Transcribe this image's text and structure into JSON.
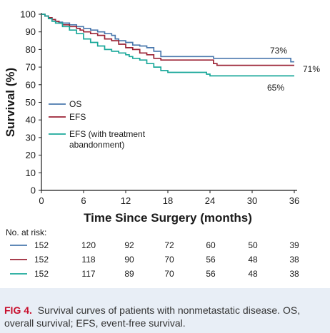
{
  "chart_data": {
    "type": "line",
    "step": true,
    "xlabel": "Time Since Surgery (months)",
    "ylabel": "Survival (%)",
    "xlim": [
      0,
      36
    ],
    "ylim": [
      0,
      100
    ],
    "x_ticks": [
      0,
      6,
      12,
      18,
      24,
      30,
      36
    ],
    "y_ticks": [
      0,
      10,
      20,
      30,
      40,
      50,
      60,
      70,
      80,
      90,
      100
    ],
    "legend_position": "left",
    "series": [
      {
        "name": "OS",
        "color": "#4a78ad",
        "end_label": "73%",
        "points": [
          [
            0,
            100
          ],
          [
            0.5,
            99
          ],
          [
            1,
            98
          ],
          [
            1.5,
            97
          ],
          [
            2,
            96
          ],
          [
            2.5,
            95.5
          ],
          [
            3,
            95
          ],
          [
            4,
            94
          ],
          [
            5,
            93
          ],
          [
            6,
            92
          ],
          [
            7,
            91
          ],
          [
            8,
            90
          ],
          [
            9,
            89
          ],
          [
            10,
            88
          ],
          [
            10.5,
            86
          ],
          [
            11,
            85
          ],
          [
            12,
            84
          ],
          [
            13,
            82.5
          ],
          [
            14,
            82
          ],
          [
            15,
            81
          ],
          [
            16,
            79
          ],
          [
            17,
            76
          ],
          [
            24,
            76
          ],
          [
            24.5,
            75
          ],
          [
            35,
            75
          ],
          [
            35.5,
            73
          ],
          [
            36,
            73
          ]
        ]
      },
      {
        "name": "EFS",
        "color": "#9b2335",
        "end_label": "71%",
        "points": [
          [
            0,
            100
          ],
          [
            0.5,
            99
          ],
          [
            1,
            98
          ],
          [
            1.5,
            97
          ],
          [
            2,
            96
          ],
          [
            2.5,
            95
          ],
          [
            3,
            94
          ],
          [
            4,
            93
          ],
          [
            5,
            92
          ],
          [
            5.5,
            91
          ],
          [
            6,
            90
          ],
          [
            7,
            89
          ],
          [
            8,
            88
          ],
          [
            9,
            86
          ],
          [
            10,
            85
          ],
          [
            11,
            83
          ],
          [
            12,
            81
          ],
          [
            13,
            80
          ],
          [
            14,
            78
          ],
          [
            15,
            77
          ],
          [
            16,
            75
          ],
          [
            17,
            74
          ],
          [
            24,
            74
          ],
          [
            24.5,
            72
          ],
          [
            25,
            71
          ],
          [
            36,
            71
          ]
        ]
      },
      {
        "name": "EFS (with treatment abandonment)",
        "color": "#1aa89a",
        "end_label": "65%",
        "points": [
          [
            0,
            100
          ],
          [
            0.5,
            99
          ],
          [
            1,
            97.5
          ],
          [
            1.5,
            96
          ],
          [
            2,
            95
          ],
          [
            3,
            93
          ],
          [
            4,
            91
          ],
          [
            5,
            89
          ],
          [
            6,
            86
          ],
          [
            7,
            84
          ],
          [
            8,
            82
          ],
          [
            9,
            80
          ],
          [
            10,
            79
          ],
          [
            11,
            78
          ],
          [
            12,
            77
          ],
          [
            12.5,
            76
          ],
          [
            13,
            75
          ],
          [
            14,
            74
          ],
          [
            15,
            72
          ],
          [
            16,
            70
          ],
          [
            17,
            68
          ],
          [
            18,
            67
          ],
          [
            23,
            67
          ],
          [
            23.5,
            66
          ],
          [
            24,
            65
          ],
          [
            36,
            65
          ]
        ]
      }
    ],
    "risk_table": {
      "title": "No. at risk:",
      "rows": [
        {
          "name": "OS",
          "color": "#4a78ad",
          "values": [
            152,
            120,
            92,
            72,
            60,
            50,
            39
          ]
        },
        {
          "name": "EFS",
          "color": "#9b2335",
          "values": [
            152,
            118,
            90,
            70,
            56,
            48,
            38
          ]
        },
        {
          "name": "EFS (with treatment abandonment)",
          "color": "#1aa89a",
          "values": [
            152,
            117,
            89,
            70,
            56,
            48,
            38
          ]
        }
      ]
    }
  },
  "caption": {
    "label": "FIG 4.",
    "text": "Survival curves of patients with nonmetastatic disease. OS, overall survival; EFS, event-free survival."
  }
}
